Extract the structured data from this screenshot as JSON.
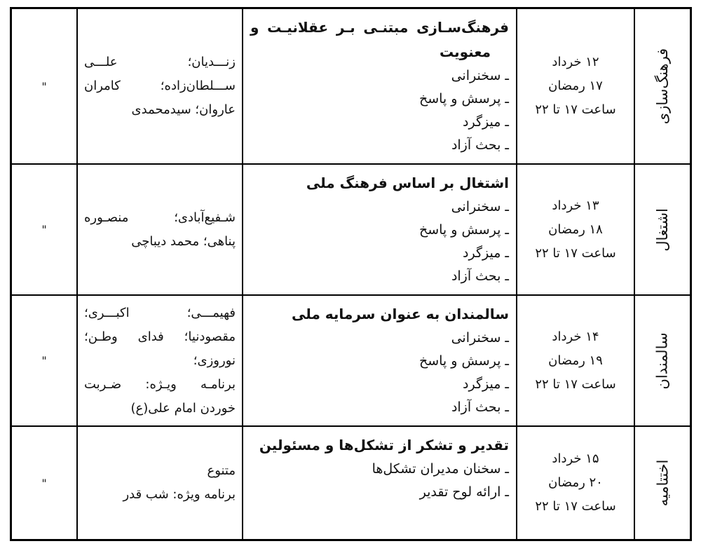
{
  "page": {
    "background": "#ffffff",
    "border_color": "#000000",
    "text_color": "#111111"
  },
  "table": {
    "rows": [
      {
        "category": "فرهنگ‌سازی",
        "ditto": "\"",
        "date_lines": [
          "۱۲ خرداد",
          "۱۷ رمضان",
          "ساعت ۱۷ تا ۲۲"
        ],
        "title_lines": [
          "فرهنگ‌سـازی مبتنـی بـر عقلانیـت و",
          "معنویت"
        ],
        "items": [
          "ـ سخنرانی",
          "ـ پرسش و پاسخ",
          "ـ میزگرد",
          "ـ بحث آزاد"
        ],
        "names_lines": [
          "زنـــدیان؛ علـــی",
          "ســـلطان‌زاده؛ کامران",
          "عاروان؛ سیدمحمدی"
        ]
      },
      {
        "category": "اشتغال",
        "ditto": "\"",
        "date_lines": [
          "۱۳ خرداد",
          "۱۸ رمضان",
          "ساعت ۱۷ تا ۲۲"
        ],
        "title_lines": [
          "اشتغال بر اساس فرهنگ ملی"
        ],
        "items": [
          "ـ سخنرانی",
          "ـ پرسش و پاسخ",
          "ـ میزگرد",
          "ـ بحث آزاد"
        ],
        "names_lines": [
          "شـفیع‌آبادی؛ منصـوره",
          "پناهی؛ محمد دیباچی"
        ]
      },
      {
        "category": "سالمندان",
        "ditto": "\"",
        "date_lines": [
          "۱۴ خرداد",
          "۱۹ رمضان",
          "ساعت ۱۷ تا ۲۲"
        ],
        "title_lines": [
          "سالمندان به عنوان سرمایه ملی"
        ],
        "items": [
          "ـ سخنرانی",
          "ـ پرسش و پاسخ",
          "ـ میزگرد",
          "ـ بحث آزاد"
        ],
        "names_lines": [
          "فهیمـــی؛ اکبـــری؛",
          "مقصودنیا؛ فدای وطـن؛",
          "نوروزی؛",
          "برنامـه ویـژه: ضـربت",
          "خوردن امام علی(ع)"
        ]
      },
      {
        "category": "اختتامیه",
        "ditto": "\"",
        "date_lines": [
          "۱۵ خرداد",
          "۲۰ رمضان",
          "ساعت ۱۷ تا ۲۲"
        ],
        "title_lines": [
          "تقدیر و تشکر از تشکل‌ها و مسئولین"
        ],
        "items": [
          "ـ سخنان مدیران تشکل‌ها",
          "ـ ارائه لوح تقدیر"
        ],
        "names_lines": [
          "متنوع",
          "برنامه ویژه: شب قدر"
        ]
      }
    ]
  }
}
